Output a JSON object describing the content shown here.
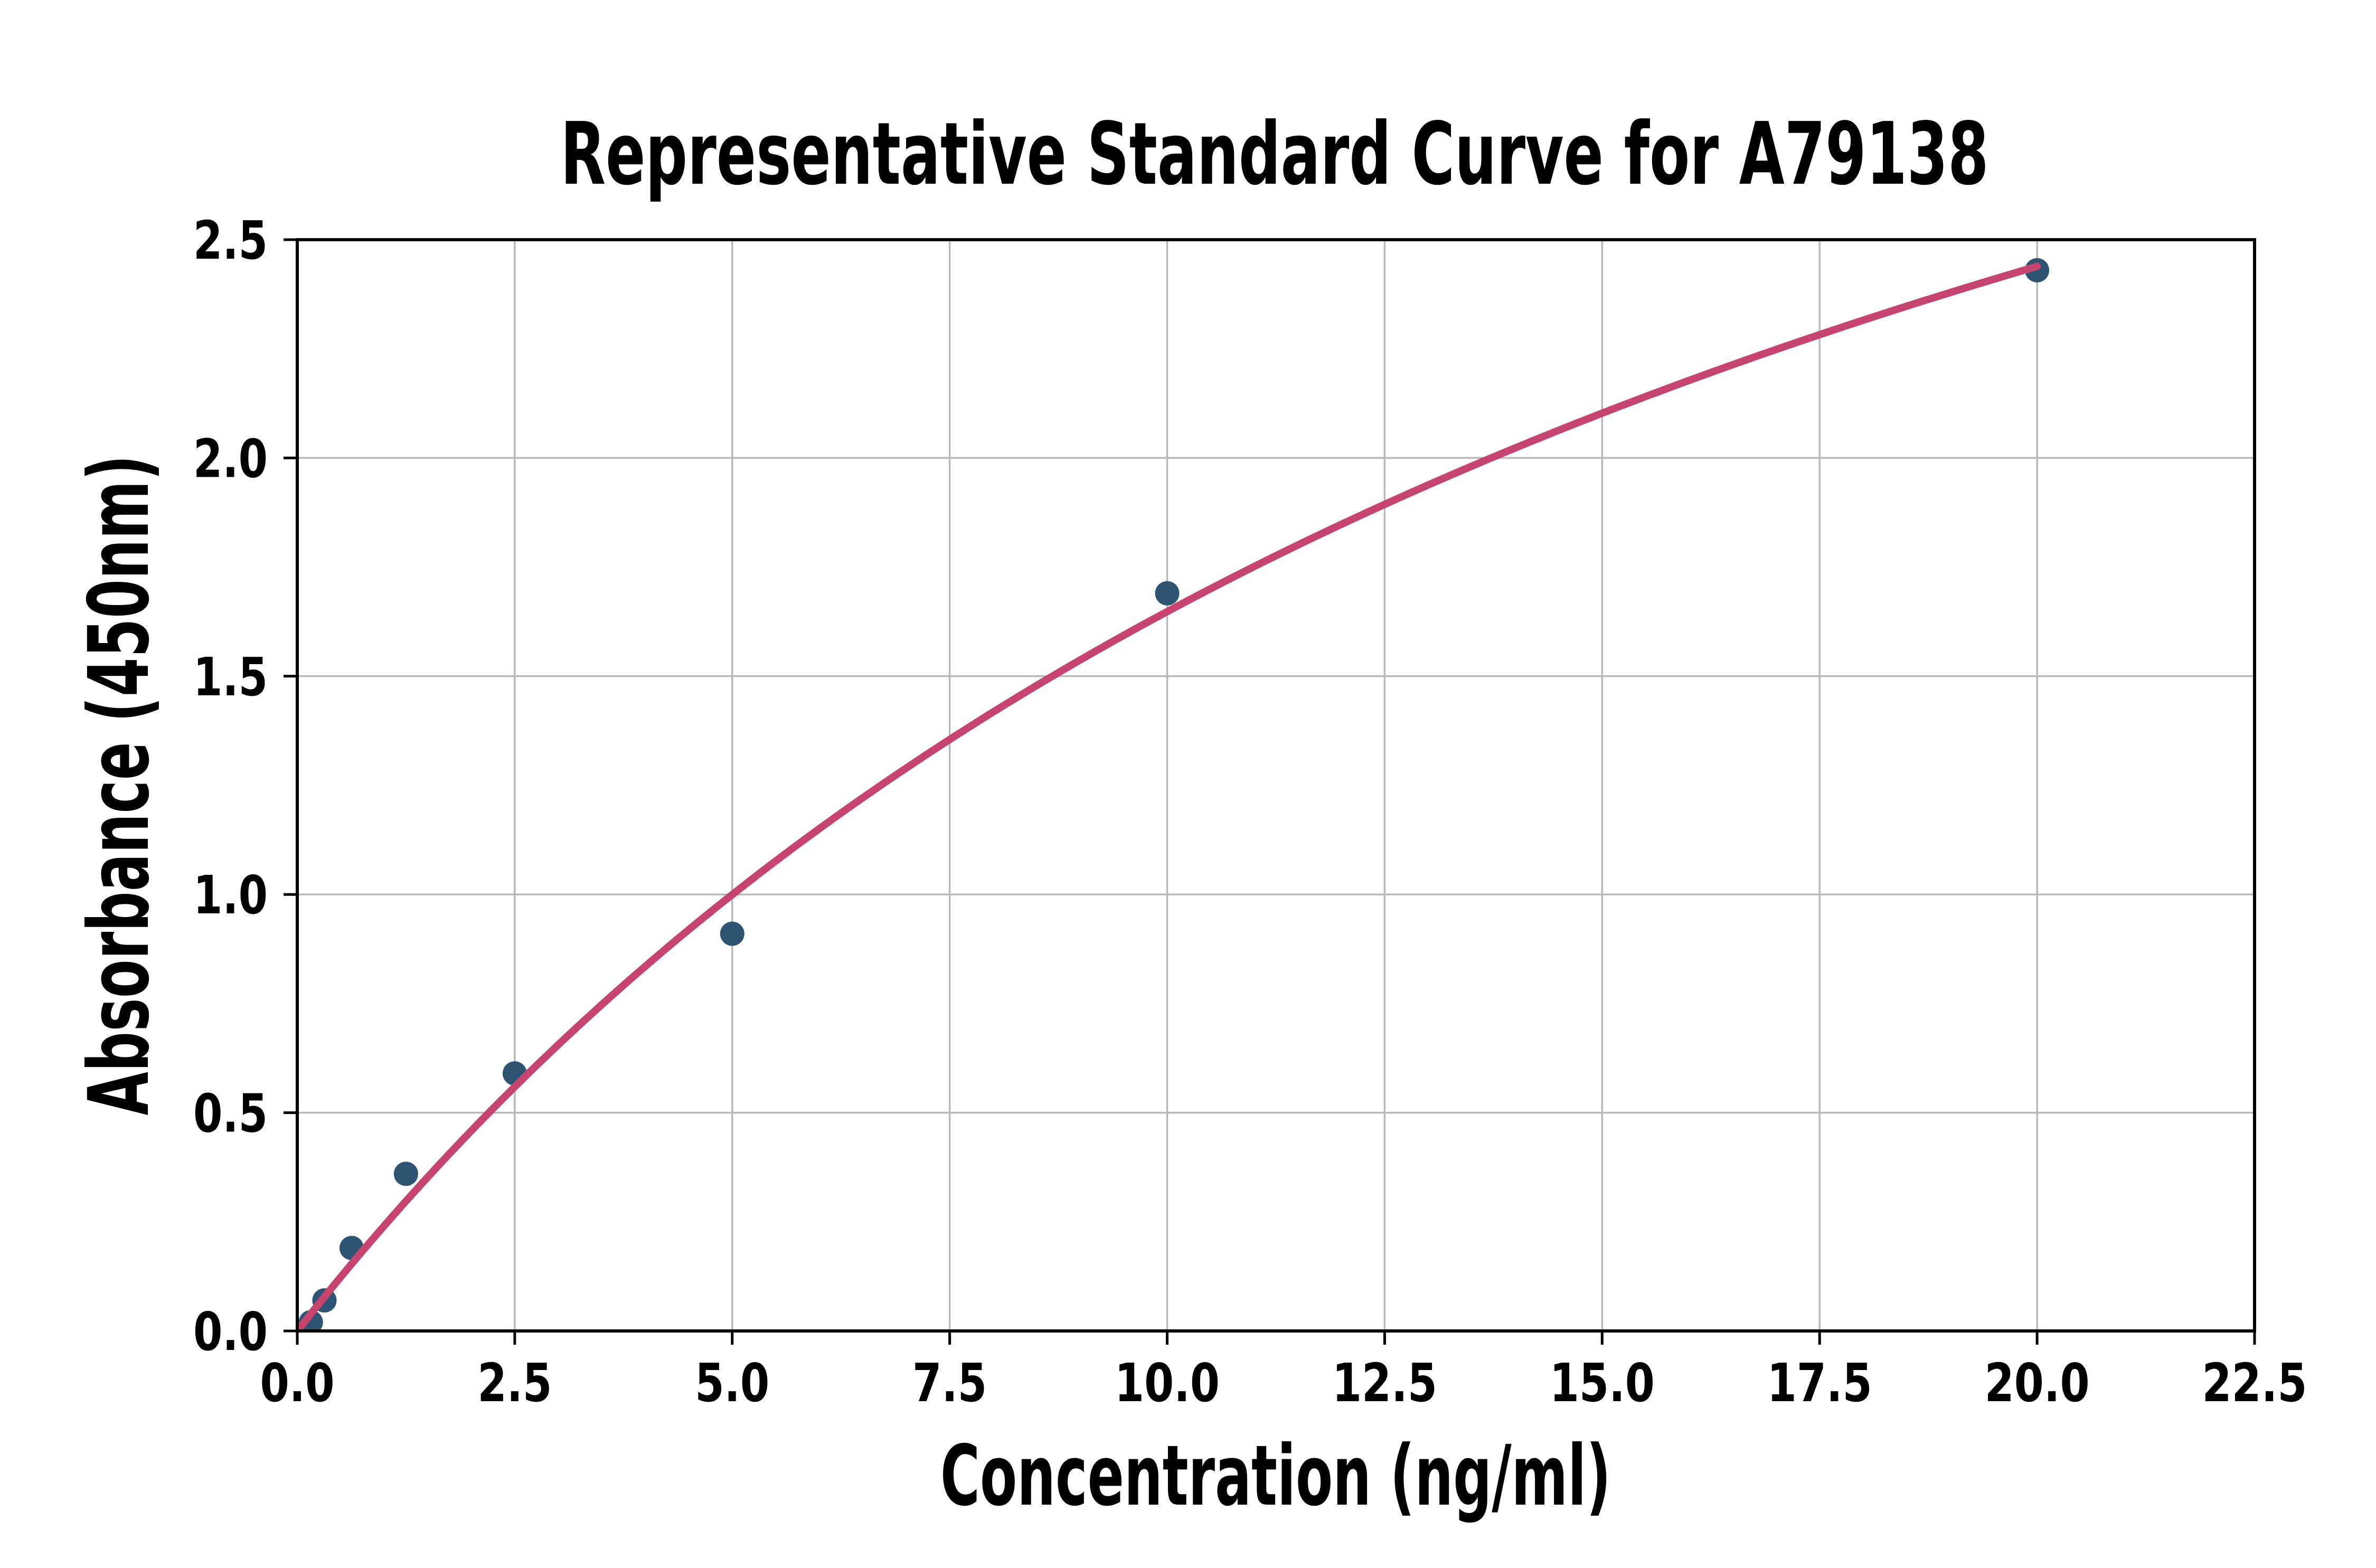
{
  "chart_data": {
    "type": "scatter",
    "title": "Representative Standard Curve for A79138",
    "xlabel": "Concentration (ng/ml)",
    "ylabel": "Absorbance (450nm)",
    "xlim": [
      0,
      22.5
    ],
    "ylim": [
      0,
      2.5
    ],
    "x_ticks": {
      "values": [
        0,
        2.5,
        5,
        7.5,
        10,
        12.5,
        15,
        17.5,
        20,
        22.5
      ],
      "labels": [
        "0.0",
        "2.5",
        "5.0",
        "7.5",
        "10.0",
        "12.5",
        "15.0",
        "17.5",
        "20.0",
        "22.5"
      ]
    },
    "y_ticks": {
      "values": [
        0,
        0.5,
        1,
        1.5,
        2,
        2.5
      ],
      "labels": [
        "0.0",
        "0.5",
        "1.0",
        "1.5",
        "2.0",
        "2.5"
      ]
    },
    "grid": true,
    "legend": false,
    "series": [
      {
        "name": "standard-points",
        "type": "scatter",
        "points": [
          [
            0.156,
            0.02
          ],
          [
            0.3125,
            0.07
          ],
          [
            0.625,
            0.19
          ],
          [
            1.25,
            0.36
          ],
          [
            2.5,
            0.59
          ],
          [
            5,
            0.91
          ],
          [
            10,
            1.69
          ],
          [
            20,
            2.43
          ]
        ]
      },
      {
        "name": "fit-curve",
        "type": "line",
        "fit_model": "y = a*x/(b + x)",
        "a": 4.69,
        "b": 18.46,
        "x_range": [
          0,
          20
        ]
      }
    ],
    "colors": {
      "point": "#2d5472",
      "curve": "#c5456e",
      "grid": "#b9b9b9",
      "axis": "#000000",
      "background": "#ffffff",
      "text": "#000000"
    }
  }
}
